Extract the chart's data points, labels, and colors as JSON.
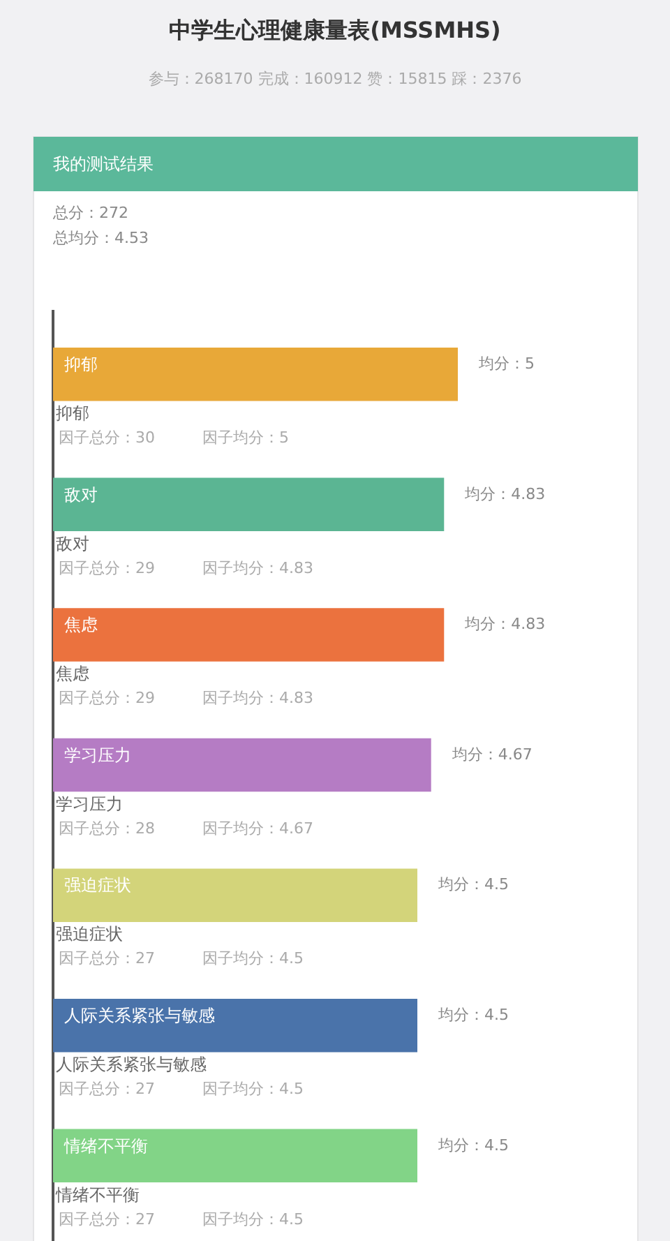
{
  "chart_data": {
    "type": "bar",
    "orientation": "horizontal",
    "title": "中学生心理健康量表(MSSMHS)",
    "subtitle": "参与：268170 完成：160912 赞：15815 踩：2376",
    "categories": [
      "抑郁",
      "敌对",
      "焦虑",
      "学习压力",
      "强迫症状",
      "人际关系紧张与敏感",
      "情绪不平衡"
    ],
    "values": [
      5,
      4.83,
      4.83,
      4.67,
      4.5,
      4.5,
      4.5
    ],
    "colors": [
      "#e8a838",
      "#5bb593",
      "#eb723e",
      "#b57cc4",
      "#d3d47a",
      "#4a73aa",
      "#82d487"
    ],
    "value_labels": [
      "均分：5",
      "均分：4.83",
      "均分：4.83",
      "均分：4.67",
      "均分：4.5",
      "均分：4.5",
      "均分：4.5"
    ],
    "annotations": [
      "我的测试结果",
      "总分：272",
      "总均分：4.53",
      "因子总分：30",
      "因子均分：5",
      "因子总分：29",
      "因子均分：4.83",
      "因子总分：29",
      "因子均分：4.83",
      "因子总分：28",
      "因子均分：4.67",
      "因子总分：27",
      "因子均分：4.5",
      "因子总分：27",
      "因子均分：4.5",
      "因子总分：27",
      "因子均分：4.5"
    ]
  }
}
